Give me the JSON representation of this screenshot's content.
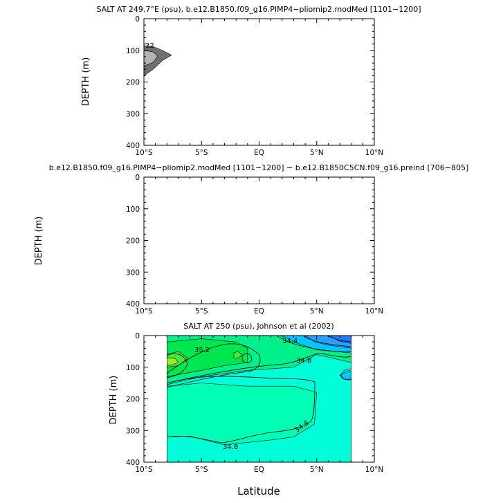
{
  "x_axis_label": "Latitude",
  "chart_data": [
    {
      "type": "contour",
      "title": "SALT AT 249.7°E (psu), b.e12.B1850.f09_g16.PIMP4−pliomip2.modMed [1101−1200]",
      "ylabel": "DEPTH (m)",
      "xlabel": "",
      "x_tick_labels": [
        "10°S",
        "5°S",
        "EQ",
        "5°N",
        "10°N"
      ],
      "x_ticks": [
        -10,
        -5,
        0,
        5,
        10
      ],
      "y_tick_labels": [
        "0",
        "100",
        "200",
        "300",
        "400"
      ],
      "y_ticks": [
        0,
        100,
        200,
        300,
        400
      ],
      "xlim": [
        -10,
        10
      ],
      "ylim": [
        400,
        0
      ],
      "contour_labels": [
        "32"
      ],
      "regions": [
        {
          "level": "outer",
          "color": "#707070",
          "points": [
            [
              -10,
              85
            ],
            [
              -9.2,
              88
            ],
            [
              -8.4,
              100
            ],
            [
              -7.6,
              115
            ],
            [
              -8.4,
              132
            ],
            [
              -9.2,
              160
            ],
            [
              -10,
              180
            ]
          ]
        },
        {
          "level": "inner",
          "color": "#b4b4b4",
          "points": [
            [
              -10,
              100
            ],
            [
              -9.2,
              105
            ],
            [
              -8.8,
              118
            ],
            [
              -9.2,
              138
            ],
            [
              -10,
              150
            ]
          ]
        }
      ]
    },
    {
      "type": "contour",
      "title": "b.e12.B1850.f09_g16.PIMP4−pliomip2.modMed [1101−1200] − b.e12.B1850C5CN.f09_g16.preind [706−805]",
      "ylabel": "DEPTH (m)",
      "xlabel": "",
      "x_tick_labels": [
        "10°S",
        "5°S",
        "EQ",
        "5°N",
        "10°N"
      ],
      "x_ticks": [
        -10,
        -5,
        0,
        5,
        10
      ],
      "y_tick_labels": [
        "0",
        "100",
        "200",
        "300",
        "400"
      ],
      "y_ticks": [
        0,
        100,
        200,
        300,
        400
      ],
      "xlim": [
        -10,
        10
      ],
      "ylim": [
        400,
        0
      ],
      "contour_labels": [],
      "regions": []
    },
    {
      "type": "contour",
      "title": "SALT AT 250 (psu), Johnson et al (2002)",
      "ylabel": "DEPTH (m)",
      "xlabel": "Latitude",
      "x_tick_labels": [
        "10°S",
        "5°S",
        "EQ",
        "5°N",
        "10°N"
      ],
      "x_ticks": [
        -10,
        -5,
        0,
        5,
        10
      ],
      "y_tick_labels": [
        "0",
        "100",
        "200",
        "300",
        "400"
      ],
      "y_ticks": [
        0,
        100,
        200,
        300,
        400
      ],
      "xlim": [
        -10,
        10
      ],
      "ylim": [
        400,
        0
      ],
      "data_extent_x": [
        -8,
        8
      ],
      "contour_labels": [
        "35.2",
        "34.4",
        "34.8",
        "34.8",
        "34.8"
      ],
      "regions": [
        {
          "level": "34.8-35.0 background",
          "color": "#00ffd8",
          "points": [
            [
              -8,
              0
            ],
            [
              8,
              0
            ],
            [
              8,
              400
            ],
            [
              -8,
              400
            ]
          ]
        },
        {
          "level": "35.0-35.2",
          "color": "#00f08c",
          "points": [
            [
              -8,
              155
            ],
            [
              -5,
              130
            ],
            [
              -1,
              110
            ],
            [
              3,
              100
            ],
            [
              5,
              60
            ],
            [
              8,
              85
            ],
            [
              8,
              0
            ],
            [
              -8,
              0
            ]
          ]
        },
        {
          "level": "35.2-35.4",
          "color": "#00e650",
          "points": [
            [
              -8,
              20
            ],
            [
              -5,
              10
            ],
            [
              -2,
              20
            ],
            [
              -1,
              40
            ],
            [
              -1,
              85
            ],
            [
              -3,
              95
            ],
            [
              -5,
              110
            ],
            [
              -8,
              130
            ]
          ]
        },
        {
          "level": "35.4-35.6",
          "color": "#44e83c",
          "points": [
            [
              -8,
              60
            ],
            [
              -7,
              50
            ],
            [
              -6.2,
              72
            ],
            [
              -7,
              95
            ],
            [
              -8,
              100
            ]
          ]
        },
        {
          "level": "35.6+",
          "color": "#a0ec28",
          "points": [
            [
              -8,
              70
            ],
            [
              -7.3,
              72
            ],
            [
              -7,
              85
            ],
            [
              -7.5,
              92
            ],
            [
              -8,
              95
            ]
          ]
        },
        {
          "level": "35.4 (eq bulge)",
          "color": "#44e83c",
          "points": [
            [
              -2.2,
              55
            ],
            [
              -1.8,
              50
            ],
            [
              -1.5,
              60
            ],
            [
              -1.8,
              72
            ],
            [
              -2.2,
              70
            ]
          ]
        },
        {
          "level": "34.8 isoline region",
          "color": "#00ffb4",
          "points": [
            [
              -8,
              160
            ],
            [
              -5,
              150
            ],
            [
              -1,
              160
            ],
            [
              3,
              160
            ],
            [
              5,
              180
            ],
            [
              4.8,
              280
            ],
            [
              3,
              320
            ],
            [
              1,
              330
            ],
            [
              -3,
              345
            ],
            [
              -6,
              318
            ],
            [
              -8,
              320
            ]
          ]
        },
        {
          "level": "34.6",
          "color": "#00c8ff",
          "points": [
            [
              2,
              0
            ],
            [
              8,
              0
            ],
            [
              8,
              55
            ],
            [
              5,
              45
            ],
            [
              3,
              20
            ]
          ]
        },
        {
          "level": "34.4",
          "color": "#28a0ff",
          "points": [
            [
              4,
              0
            ],
            [
              8,
              0
            ],
            [
              8,
              40
            ],
            [
              6,
              30
            ],
            [
              4.8,
              20
            ]
          ]
        },
        {
          "level": "34.2",
          "color": "#2078ff",
          "points": [
            [
              6,
              0
            ],
            [
              8,
              0
            ],
            [
              8,
              25
            ],
            [
              7,
              18
            ]
          ]
        },
        {
          "level": "34.6 small (8N)",
          "color": "#00c8ff",
          "points": [
            [
              7,
              125
            ],
            [
              7.8,
              110
            ],
            [
              8,
              115
            ],
            [
              8,
              135
            ],
            [
              7.5,
              140
            ]
          ]
        }
      ]
    }
  ]
}
